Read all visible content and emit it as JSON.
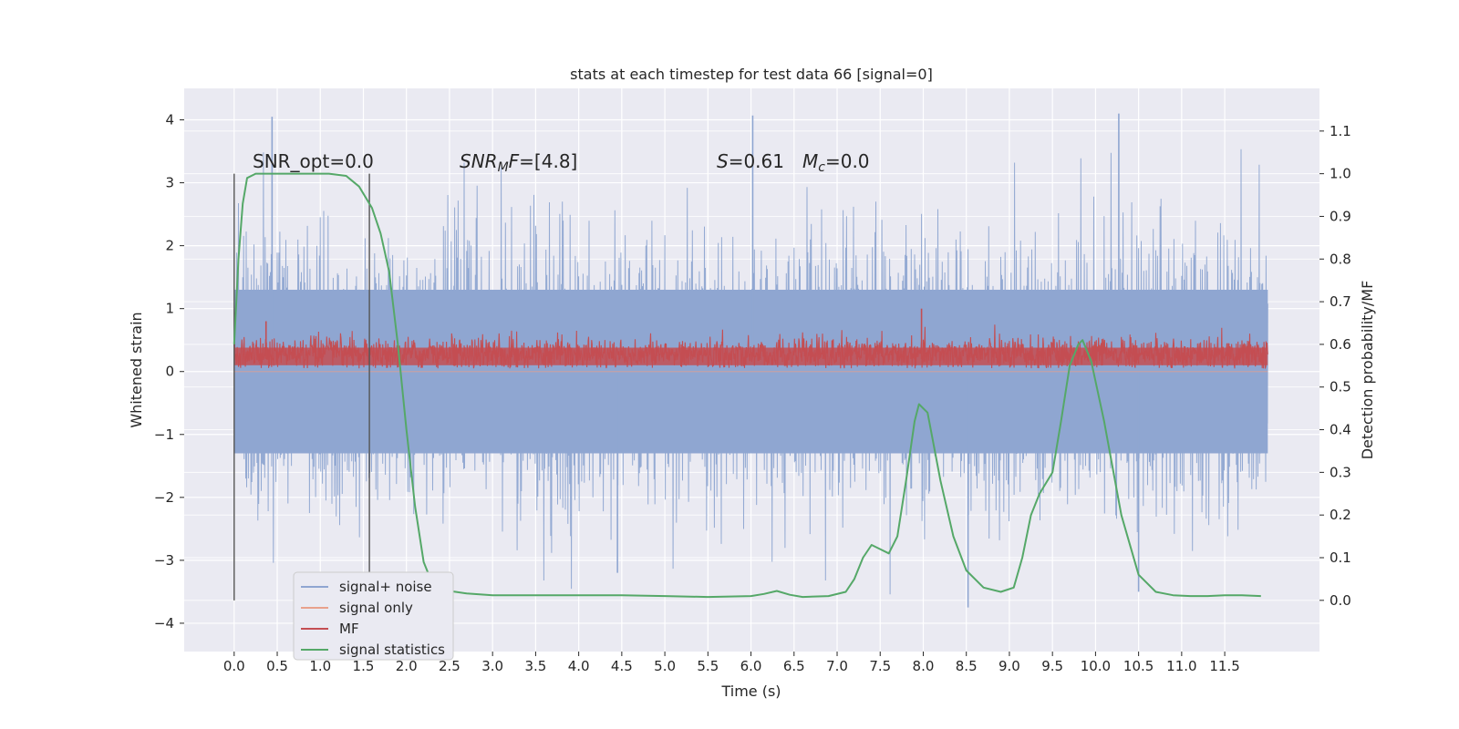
{
  "chart_data": {
    "type": "line",
    "title": "stats at each timestep for test data 66 [signal=0]",
    "xlabel": "Time (s)",
    "ylabel": "Whitened strain",
    "y2label": "Detection probability/MF",
    "xlim": [
      -0.58,
      12.6
    ],
    "ylim": [
      -4.45,
      4.5
    ],
    "y2lim": [
      -0.12,
      1.2
    ],
    "xticks": [
      "0.0",
      "0.5",
      "1.0",
      "1.5",
      "2.0",
      "2.5",
      "3.0",
      "3.5",
      "4.0",
      "4.5",
      "5.0",
      "5.5",
      "6.0",
      "6.5",
      "7.0",
      "7.5",
      "8.0",
      "8.5",
      "9.0",
      "9.5",
      "10.0",
      "10.5",
      "11.0",
      "11.5"
    ],
    "yticks": [
      "4",
      "3",
      "2",
      "1",
      "0",
      "−1",
      "−2",
      "−3",
      "−4"
    ],
    "y2ticks": [
      "1.1",
      "1.0",
      "0.9",
      "0.8",
      "0.7",
      "0.6",
      "0.5",
      "0.4",
      "0.3",
      "0.2",
      "0.1",
      "0.0"
    ],
    "grid": true,
    "legend_position": "lower-left",
    "annotations": {
      "snr_opt": "SNR_opt=0.0",
      "snr_mf_sym": "SNR",
      "snr_mf_sub": "M",
      "snr_mf_sym2": "F",
      "snr_mf_val": "=[4.8]",
      "s_sym": "S",
      "s_val": "=0.61",
      "mc_sym": "M",
      "mc_sub": "c",
      "mc_val": "=0.0"
    },
    "vertical_lines_x": [
      0.0,
      1.57
    ],
    "series": [
      {
        "name": "signal+ noise",
        "color": "#8fa6d1",
        "axis": "left",
        "x_range": [
          0.0,
          12.0
        ],
        "band_core": [
          -1.3,
          1.3
        ],
        "band_typical": [
          -2.0,
          2.2
        ],
        "notable_peaks": [
          {
            "x": 0.44,
            "y": 4.05
          },
          {
            "x": 6.02,
            "y": 4.07
          },
          {
            "x": 10.27,
            "y": 4.1
          },
          {
            "x": 8.52,
            "y": -3.75
          },
          {
            "x": 10.5,
            "y": -3.5
          },
          {
            "x": 4.45,
            "y": -3.2
          }
        ]
      },
      {
        "name": "signal only",
        "color": "#e8a18c",
        "axis": "left",
        "x": [
          0.0,
          12.0
        ],
        "y": [
          0.0,
          0.0
        ]
      },
      {
        "name": "MF",
        "color": "#c44e52",
        "axis": "left",
        "x_range": [
          0.0,
          12.0
        ],
        "band": [
          0.05,
          0.55
        ],
        "notable_peaks": [
          {
            "x": 7.98,
            "y": 1.0
          },
          {
            "x": 0.37,
            "y": 0.8
          }
        ]
      },
      {
        "name": "signal statistics",
        "color": "#55a868",
        "axis": "right",
        "x": [
          0.0,
          0.05,
          0.1,
          0.15,
          0.25,
          0.4,
          0.8,
          1.1,
          1.3,
          1.45,
          1.6,
          1.7,
          1.8,
          1.9,
          2.0,
          2.1,
          2.2,
          2.3,
          2.5,
          2.7,
          3.0,
          3.5,
          4.0,
          4.5,
          5.0,
          5.5,
          6.0,
          6.15,
          6.3,
          6.45,
          6.6,
          6.9,
          7.1,
          7.2,
          7.3,
          7.4,
          7.5,
          7.6,
          7.7,
          7.8,
          7.9,
          7.95,
          8.05,
          8.2,
          8.35,
          8.5,
          8.7,
          8.9,
          9.05,
          9.15,
          9.25,
          9.35,
          9.5,
          9.6,
          9.7,
          9.8,
          9.85,
          9.95,
          10.1,
          10.3,
          10.5,
          10.7,
          10.9,
          11.1,
          11.3,
          11.5,
          11.7,
          11.92
        ],
        "y": [
          0.6,
          0.8,
          0.93,
          0.99,
          1.0,
          1.0,
          1.0,
          1.0,
          0.995,
          0.97,
          0.92,
          0.86,
          0.77,
          0.6,
          0.4,
          0.22,
          0.09,
          0.04,
          0.022,
          0.016,
          0.012,
          0.012,
          0.012,
          0.012,
          0.01,
          0.008,
          0.01,
          0.015,
          0.022,
          0.013,
          0.008,
          0.01,
          0.02,
          0.05,
          0.1,
          0.13,
          0.12,
          0.11,
          0.15,
          0.28,
          0.42,
          0.46,
          0.44,
          0.28,
          0.15,
          0.07,
          0.03,
          0.02,
          0.03,
          0.1,
          0.2,
          0.25,
          0.3,
          0.42,
          0.55,
          0.6,
          0.61,
          0.56,
          0.42,
          0.2,
          0.06,
          0.02,
          0.012,
          0.01,
          0.01,
          0.012,
          0.012,
          0.01
        ]
      }
    ]
  }
}
